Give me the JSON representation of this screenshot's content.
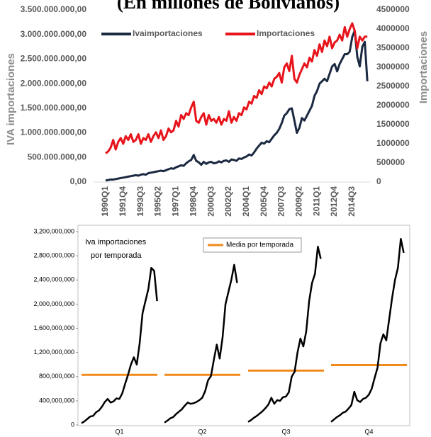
{
  "chart_data": [
    {
      "type": "line",
      "title": "(En millones de Bolivianos)",
      "y_label": "IVA importaciones",
      "y2_label": "Importaciones",
      "categories": [
        "1990Q1",
        null,
        null,
        null,
        null,
        null,
        null,
        "1991Q4",
        null,
        null,
        null,
        null,
        null,
        null,
        "1993Q3",
        null,
        null,
        null,
        null,
        null,
        null,
        "1995Q2",
        null,
        null,
        null,
        null,
        null,
        null,
        "1997Q1",
        null,
        null,
        null,
        null,
        null,
        null,
        "1998Q4",
        null,
        null,
        null,
        null,
        null,
        null,
        "2000Q3",
        null,
        null,
        null,
        null,
        null,
        null,
        "2002Q2",
        null,
        null,
        null,
        null,
        null,
        null,
        "2004Q1",
        null,
        null,
        null,
        null,
        null,
        null,
        "2005Q4",
        null,
        null,
        null,
        null,
        null,
        null,
        "2007Q3",
        null,
        null,
        null,
        null,
        null,
        null,
        "2009Q2",
        null,
        null,
        null,
        null,
        null,
        null,
        "2011Q1",
        null,
        null,
        null,
        null,
        null,
        null,
        "2012Q4",
        null,
        null,
        null,
        null,
        null,
        null,
        "2014Q3",
        null,
        null,
        null,
        null,
        null,
        null
      ],
      "series": [
        {
          "name": "Ivaimportaciones",
          "color": "#1b2a41",
          "axis": "y",
          "values": [
            30000000.0,
            40000000.0,
            50000000.0,
            50000000.0,
            60000000.0,
            70000000.0,
            80000000.0,
            90000000.0,
            100000000.0,
            110000000.0,
            120000000.0,
            130000000.0,
            140000000.0,
            130000000.0,
            150000000.0,
            160000000.0,
            150000000.0,
            180000000.0,
            190000000.0,
            200000000.0,
            210000000.0,
            220000000.0,
            230000000.0,
            220000000.0,
            240000000.0,
            260000000.0,
            280000000.0,
            270000000.0,
            300000000.0,
            320000000.0,
            340000000.0,
            330000000.0,
            380000000.0,
            420000000.0,
            450000000.0,
            550000000.0,
            430000000.0,
            400000000.0,
            350000000.0,
            410000000.0,
            370000000.0,
            400000000.0,
            410000000.0,
            380000000.0,
            390000000.0,
            420000000.0,
            400000000.0,
            430000000.0,
            440000000.0,
            410000000.0,
            460000000.0,
            450000000.0,
            430000000.0,
            480000000.0,
            470000000.0,
            500000000.0,
            520000000.0,
            560000000.0,
            540000000.0,
            600000000.0,
            680000000.0,
            740000000.0,
            800000000.0,
            780000000.0,
            830000000.0,
            810000000.0,
            880000000.0,
            950000000.0,
            1000000000.0,
            1080000000.0,
            1200000000.0,
            1350000000.0,
            1400000000.0,
            1480000000.0,
            1500000000.0,
            1250000000.0,
            1000000000.0,
            1100000000.0,
            1300000000.0,
            1250000000.0,
            1350000000.0,
            1450000000.0,
            1550000000.0,
            1750000000.0,
            1850000000.0,
            2000000000.0,
            2050000000.0,
            2100000000.0,
            2050000000.0,
            2200000000.0,
            2350000000.0,
            2400000000.0,
            2250000000.0,
            2400000000.0,
            2500000000.0,
            2600000000.0,
            2600000000.0,
            2650000000.0,
            2950000000.0,
            3080000000.0,
            2550000000.0,
            2350000000.0,
            2750000000.0,
            2850000000.0,
            2050000000.0
          ]
        },
        {
          "name": "Importaciones",
          "color": "#e8141b",
          "axis": "y2",
          "values": [
            750000.0,
            800000.0,
            900000.0,
            1100000.0,
            850000.0,
            1050000.0,
            1150000.0,
            1000000.0,
            1200000.0,
            1100000.0,
            1250000.0,
            1050000.0,
            1100000.0,
            1250000.0,
            1000000.0,
            1150000.0,
            1100000.0,
            1250000.0,
            1050000.0,
            1200000.0,
            1300000.0,
            1150000.0,
            1350000.0,
            1100000.0,
            1200000.0,
            1400000.0,
            1300000.0,
            1350000.0,
            1600000.0,
            1450000.0,
            1750000.0,
            1650000.0,
            1800000.0,
            1750000.0,
            1950000.0,
            2100000.0,
            1600000.0,
            1550000.0,
            1700000.0,
            1800000.0,
            1500000.0,
            1750000.0,
            1600000.0,
            1650000.0,
            1550000.0,
            1700000.0,
            1500000.0,
            1650000.0,
            1600000.0,
            1850000.0,
            1550000.0,
            1700000.0,
            1600000.0,
            1800000.0,
            1750000.0,
            1950000.0,
            1900000.0,
            2100000.0,
            2050000.0,
            2250000.0,
            2200000.0,
            2400000.0,
            2300000.0,
            2500000.0,
            2450000.0,
            2600000.0,
            2500000.0,
            2700000.0,
            2750000.0,
            2850000.0,
            2600000.0,
            3000000.0,
            3100000.0,
            2900000.0,
            3300000.0,
            2700000.0,
            2600000.0,
            2800000.0,
            2950000.0,
            3100000.0,
            3000000.0,
            3250000.0,
            3150000.0,
            3450000.0,
            3300000.0,
            3600000.0,
            3400000.0,
            3700000.0,
            3550000.0,
            3800000.0,
            3500000.0,
            3650000.0,
            3700000.0,
            3850000.0,
            3700000.0,
            4050000.0,
            3800000.0,
            4000000.0,
            4150000.0,
            3950000.0,
            3500000.0,
            3800000.0,
            3700000.0,
            3800000.0,
            3800000.0
          ]
        }
      ],
      "ylim": [
        0,
        3500000000.0
      ],
      "yticks": [
        {
          "value": 0,
          "label": "0,00"
        },
        {
          "value": 500000000.0,
          "label": "500.000.000,00"
        },
        {
          "value": 1000000000.0,
          "label": "1.000.000.000,00"
        },
        {
          "value": 1500000000.0,
          "label": "1.500.000.000,00"
        },
        {
          "value": 2000000000.0,
          "label": "2.000.000.000,00"
        },
        {
          "value": 2500000000.0,
          "label": "2.500.000.000,00"
        },
        {
          "value": 3000000000.0,
          "label": "3.000.000.000,00"
        },
        {
          "value": 3500000000.0,
          "label": "3.500.000.000,00"
        }
      ],
      "y2lim": [
        0,
        4500000
      ],
      "y2ticks": [
        0,
        500000,
        1000000,
        1500000,
        2000000,
        2500000,
        3000000,
        3500000,
        4000000,
        4500000
      ],
      "legend": "top"
    },
    {
      "type": "seasonal",
      "annotation": [
        "Iva importaciones",
        "por temporada"
      ],
      "categories": [
        "Q1",
        "Q2",
        "Q3",
        "Q4"
      ],
      "color": "#000000",
      "mean_name": "Media por temporada",
      "mean_color": "#f08a1c",
      "means": [
        830000000.0,
        830000000.0,
        900000000.0,
        990000000.0
      ],
      "panels": [
        [
          30000000.0,
          60000000.0,
          100000000.0,
          140000000.0,
          150000000.0,
          210000000.0,
          240000000.0,
          300000000.0,
          380000000.0,
          430000000.0,
          370000000.0,
          390000000.0,
          440000000.0,
          430000000.0,
          520000000.0,
          680000000.0,
          830000000.0,
          1000000000.0,
          1120000000.0,
          1000000000.0,
          1350000000.0,
          1850000000.0,
          2050000000.0,
          2250000000.0,
          2600000000.0,
          2550000000.0,
          2050000000.0
        ],
        [
          40000000.0,
          70000000.0,
          110000000.0,
          130000000.0,
          180000000.0,
          220000000.0,
          260000000.0,
          320000000.0,
          370000000.0,
          350000000.0,
          360000000.0,
          380000000.0,
          410000000.0,
          450000000.0,
          560000000.0,
          740000000.0,
          810000000.0,
          1080000000.0,
          1330000000.0,
          1100000000.0,
          1450000000.0,
          2000000000.0,
          2200000000.0,
          2400000000.0,
          2650000000.0,
          2350000000.0
        ],
        [
          50000000.0,
          80000000.0,
          120000000.0,
          150000000.0,
          190000000.0,
          230000000.0,
          280000000.0,
          340000000.0,
          450000000.0,
          350000000.0,
          410000000.0,
          400000000.0,
          460000000.0,
          470000000.0,
          540000000.0,
          800000000.0,
          880000000.0,
          1200000000.0,
          1430000000.0,
          1300000000.0,
          1550000000.0,
          2050000000.0,
          2350000000.0,
          2500000000.0,
          2950000000.0,
          2750000000.0
        ],
        [
          50000000.0,
          90000000.0,
          130000000.0,
          160000000.0,
          200000000.0,
          220000000.0,
          270000000.0,
          330000000.0,
          550000000.0,
          410000000.0,
          380000000.0,
          430000000.0,
          450000000.0,
          500000000.0,
          600000000.0,
          780000000.0,
          950000000.0,
          1350000000.0,
          1500000000.0,
          1400000000.0,
          1750000000.0,
          2100000000.0,
          2400000000.0,
          2600000000.0,
          3080000000.0,
          2850000000.0
        ]
      ],
      "ylim": [
        0,
        3200000000.0
      ],
      "yticks": [
        0,
        {
          "value": 400000000.0,
          "label": "400,000,000"
        },
        {
          "value": 800000000.0,
          "label": "800,000,000"
        },
        {
          "value": 1200000000.0,
          "label": "1,200,000,000"
        },
        {
          "value": 1600000000.0,
          "label": "1,600,000,000"
        },
        {
          "value": 2000000000.0,
          "label": "2,000,000,000"
        },
        {
          "value": 2400000000.0,
          "label": "2,400,000,000"
        },
        {
          "value": 2800000000.0,
          "label": "2,800,000,000"
        },
        {
          "value": 3200000000.0,
          "label": "3,200,000,000"
        }
      ]
    }
  ]
}
